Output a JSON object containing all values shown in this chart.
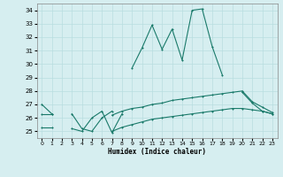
{
  "xlabel": "Humidex (Indice chaleur)",
  "x": [
    0,
    1,
    2,
    3,
    4,
    5,
    6,
    7,
    8,
    9,
    10,
    11,
    12,
    13,
    14,
    15,
    16,
    17,
    18,
    19,
    20,
    21,
    22,
    23
  ],
  "line1": [
    27.0,
    26.3,
    null,
    26.3,
    25.2,
    25.0,
    26.0,
    26.5,
    null,
    29.7,
    31.2,
    32.9,
    31.1,
    32.6,
    30.3,
    34.0,
    34.1,
    31.3,
    29.2,
    null,
    27.9,
    27.1,
    26.5,
    26.3
  ],
  "line2": [
    26.3,
    26.3,
    null,
    null,
    null,
    null,
    null,
    26.2,
    26.5,
    26.7,
    26.8,
    27.0,
    27.1,
    27.3,
    27.4,
    27.5,
    27.6,
    27.7,
    27.8,
    27.9,
    28.0,
    27.2,
    26.8,
    26.4
  ],
  "line3": [
    25.3,
    25.3,
    null,
    null,
    null,
    null,
    null,
    25.0,
    25.3,
    25.5,
    25.7,
    25.9,
    26.0,
    26.1,
    26.2,
    26.3,
    26.4,
    26.5,
    26.6,
    26.7,
    26.7,
    26.6,
    26.5,
    26.3
  ],
  "line_jagged": [
    null,
    null,
    null,
    25.2,
    25.0,
    26.0,
    26.5,
    24.9,
    26.3,
    null,
    null,
    null,
    null,
    null,
    null,
    null,
    null,
    null,
    null,
    null,
    null,
    null,
    null,
    null
  ],
  "ylim": [
    24.5,
    34.5
  ],
  "yticks": [
    25,
    26,
    27,
    28,
    29,
    30,
    31,
    32,
    33,
    34
  ],
  "xticks": [
    0,
    1,
    2,
    3,
    4,
    5,
    6,
    7,
    8,
    9,
    10,
    11,
    12,
    13,
    14,
    15,
    16,
    17,
    18,
    19,
    20,
    21,
    22,
    23
  ],
  "line_color": "#1a7a6a",
  "bg_color": "#d6eef0",
  "grid_color": "#b8dde0"
}
